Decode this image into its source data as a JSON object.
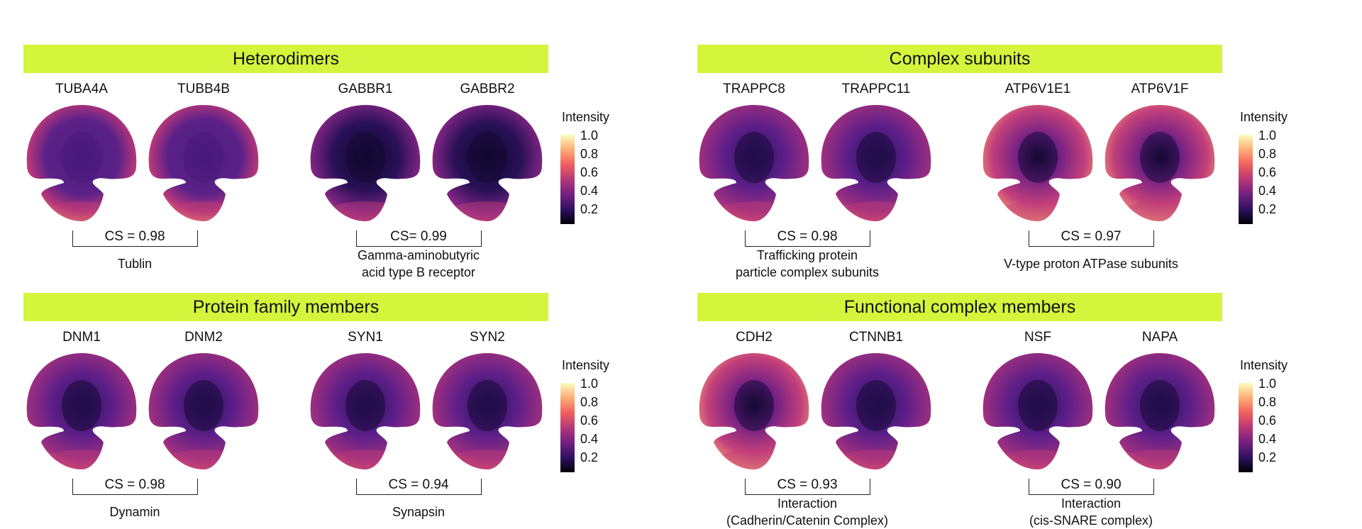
{
  "colorbar": {
    "title": "Intensity",
    "ticks": [
      "1.0",
      "0.8",
      "0.6",
      "0.4",
      "0.2"
    ]
  },
  "sections": [
    {
      "title": "Heterodimers",
      "pairs": [
        {
          "genes": [
            "TUBA4A",
            "TUBB4B"
          ],
          "cs": "CS = 0.98",
          "desc": [
            "Tublin"
          ],
          "pattern": [
            "ring",
            "ring"
          ]
        },
        {
          "genes": [
            "GABBR1",
            "GABBR2"
          ],
          "cs": "CS= 0.99",
          "desc": [
            "Gamma-aminobutyric",
            "acid type B receptor"
          ],
          "pattern": [
            "dark",
            "dark"
          ]
        }
      ]
    },
    {
      "title": "Complex subunits",
      "pairs": [
        {
          "genes": [
            "TRAPPC8",
            "TRAPPC11"
          ],
          "cs": "CS = 0.98",
          "desc": [
            "Trafficking protein",
            "particle complex subunits"
          ],
          "pattern": [
            "mid",
            "mid"
          ]
        },
        {
          "genes": [
            "ATP6V1E1",
            "ATP6V1F"
          ],
          "cs": "CS = 0.97",
          "desc": [
            "V-type proton ATPase subunits"
          ],
          "pattern": [
            "bright",
            "bright"
          ]
        }
      ]
    },
    {
      "title": "Protein family members",
      "pairs": [
        {
          "genes": [
            "DNM1",
            "DNM2"
          ],
          "cs": "CS = 0.98",
          "desc": [
            "Dynamin"
          ],
          "pattern": [
            "mid",
            "mid"
          ]
        },
        {
          "genes": [
            "SYN1",
            "SYN2"
          ],
          "cs": "CS = 0.94",
          "desc": [
            "Synapsin"
          ],
          "pattern": [
            "mid",
            "mid"
          ]
        }
      ]
    },
    {
      "title": "Functional complex members",
      "pairs": [
        {
          "genes": [
            "CDH2",
            "CTNNB1"
          ],
          "cs": "CS = 0.93",
          "desc": [
            "Interaction",
            "(Cadherin/Catenin Complex)"
          ],
          "pattern": [
            "bright",
            "mid"
          ]
        },
        {
          "genes": [
            "NSF",
            "NAPA"
          ],
          "cs": "CS = 0.90",
          "desc": [
            "Interaction",
            "(cis-SNARE complex)"
          ],
          "pattern": [
            "mid",
            "mid"
          ]
        }
      ]
    }
  ]
}
